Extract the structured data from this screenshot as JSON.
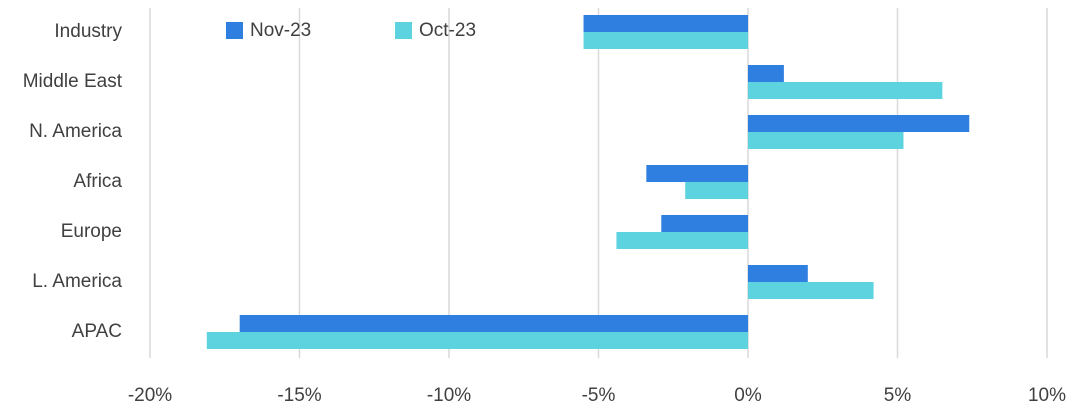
{
  "chart_data": {
    "type": "hbar",
    "categories": [
      "Industry",
      "Middle East",
      "N. America",
      "Africa",
      "Europe",
      "L. America",
      "APAC"
    ],
    "series": [
      {
        "name": "Nov-23",
        "color": "#2e7fe0",
        "values": [
          -5.5,
          1.2,
          7.4,
          -3.4,
          -2.9,
          2.0,
          -17.0
        ]
      },
      {
        "name": "Oct-23",
        "color": "#5dd3e0",
        "values": [
          -5.5,
          6.5,
          5.2,
          -2.1,
          -4.4,
          4.2,
          -18.1
        ]
      }
    ],
    "xlim": [
      -20,
      10
    ],
    "xticks": [
      {
        "value": -20,
        "label": "-20%"
      },
      {
        "value": -15,
        "label": "-15%"
      },
      {
        "value": -10,
        "label": "-10%"
      },
      {
        "value": -5,
        "label": "-5%"
      },
      {
        "value": 0,
        "label": "0%"
      },
      {
        "value": 5,
        "label": "5%"
      },
      {
        "value": 10,
        "label": "10%"
      }
    ],
    "grid": true,
    "legend": "top"
  }
}
